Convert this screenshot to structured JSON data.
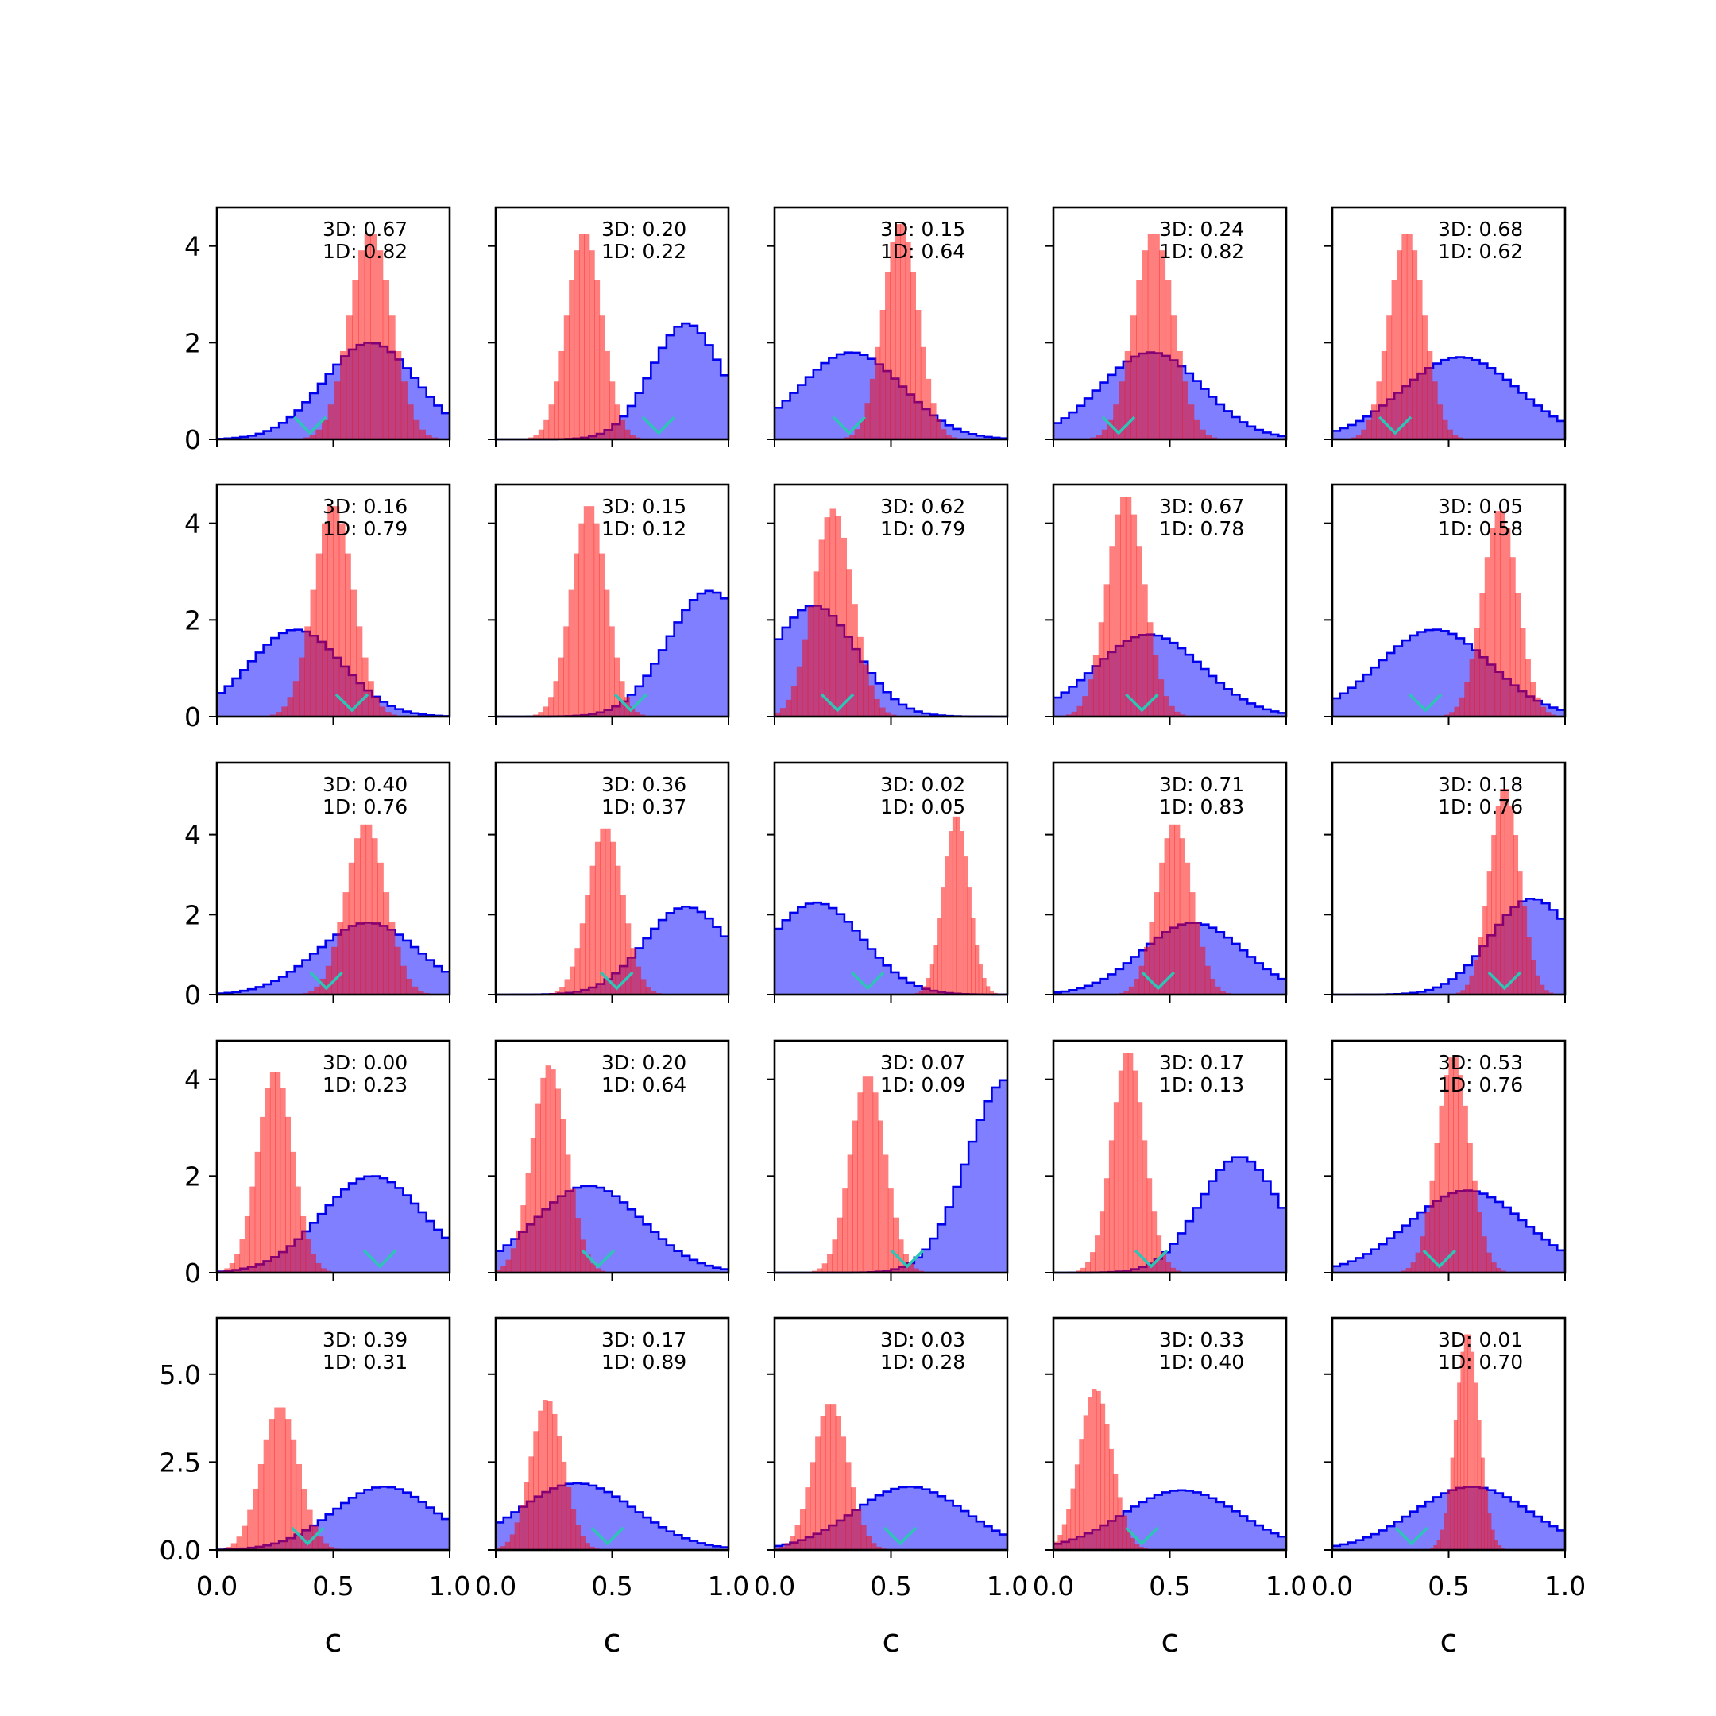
{
  "figure": {
    "shared_xlabel": "c"
  },
  "chart_data": {
    "type": "histogram-grid",
    "rows": 5,
    "cols": 5,
    "xlim": [
      0,
      1
    ],
    "x_ticks": [
      0.0,
      0.5,
      1.0
    ],
    "x_tick_labels": [
      "0.0",
      "0.5",
      "1.0"
    ],
    "xlabel": "c",
    "row_axes": [
      {
        "ylim": [
          0,
          4.8
        ],
        "y_ticks": [
          0,
          2,
          4
        ],
        "y_tick_labels": [
          "0",
          "2",
          "4"
        ]
      },
      {
        "ylim": [
          0,
          4.8
        ],
        "y_ticks": [
          0,
          2,
          4
        ],
        "y_tick_labels": [
          "0",
          "2",
          "4"
        ]
      },
      {
        "ylim": [
          0,
          5.8
        ],
        "y_ticks": [
          0,
          2,
          4
        ],
        "y_tick_labels": [
          "0",
          "2",
          "4"
        ]
      },
      {
        "ylim": [
          0,
          4.8
        ],
        "y_ticks": [
          0,
          2,
          4
        ],
        "y_tick_labels": [
          "0",
          "2",
          "4"
        ]
      },
      {
        "ylim": [
          0,
          6.6
        ],
        "y_ticks": [
          0,
          2.5,
          5.0
        ],
        "y_tick_labels": [
          "0.0",
          "2.5",
          "5.0"
        ]
      }
    ],
    "series_style": {
      "blue": {
        "fill": "#0000ff",
        "fill_opacity": 0.5,
        "edge": "#0000ee",
        "histtype": "step-filled"
      },
      "red": {
        "fill": "#ff0000",
        "fill_opacity": 0.5,
        "histtype": "bar"
      },
      "marker": {
        "color": "#2ec4b6",
        "shape": "v"
      }
    },
    "panels": [
      {
        "row": 0,
        "col": 0,
        "label_3d": "3D: 0.67",
        "label_1d": "1D: 0.82",
        "blue": {
          "mu": 0.66,
          "sigma": 0.2,
          "peak": 2.0
        },
        "red": {
          "mu": 0.66,
          "sigma": 0.09,
          "peak": 4.3
        },
        "marker_x": 0.4
      },
      {
        "row": 0,
        "col": 1,
        "label_3d": "3D: 0.20",
        "label_1d": "1D: 0.22",
        "blue": {
          "mu": 0.82,
          "sigma": 0.15,
          "peak": 2.4
        },
        "red": {
          "mu": 0.38,
          "sigma": 0.075,
          "peak": 4.3
        },
        "marker_x": 0.7
      },
      {
        "row": 0,
        "col": 2,
        "label_3d": "3D: 0.15",
        "label_1d": "1D: 0.64",
        "blue": {
          "mu": 0.33,
          "sigma": 0.22,
          "peak": 1.8
        },
        "red": {
          "mu": 0.54,
          "sigma": 0.075,
          "peak": 4.5
        },
        "marker_x": 0.32
      },
      {
        "row": 0,
        "col": 3,
        "label_3d": "3D: 0.24",
        "label_1d": "1D: 0.82",
        "blue": {
          "mu": 0.42,
          "sigma": 0.22,
          "peak": 1.8
        },
        "red": {
          "mu": 0.43,
          "sigma": 0.085,
          "peak": 4.3
        },
        "marker_x": 0.28
      },
      {
        "row": 0,
        "col": 4,
        "label_3d": "3D: 0.68",
        "label_1d": "1D: 0.62",
        "blue": {
          "mu": 0.55,
          "sigma": 0.25,
          "peak": 1.7
        },
        "red": {
          "mu": 0.32,
          "sigma": 0.075,
          "peak": 4.3
        },
        "marker_x": 0.27
      },
      {
        "row": 1,
        "col": 0,
        "label_3d": "3D: 0.16",
        "label_1d": "1D: 0.79",
        "blue": {
          "mu": 0.34,
          "sigma": 0.2,
          "peak": 1.8
        },
        "red": {
          "mu": 0.5,
          "sigma": 0.085,
          "peak": 4.4
        },
        "marker_x": 0.58
      },
      {
        "row": 1,
        "col": 1,
        "label_3d": "3D: 0.15",
        "label_1d": "1D: 0.12",
        "blue": {
          "mu": 0.92,
          "sigma": 0.18,
          "peak": 2.6
        },
        "red": {
          "mu": 0.4,
          "sigma": 0.075,
          "peak": 4.4
        },
        "marker_x": 0.58
      },
      {
        "row": 1,
        "col": 2,
        "label_3d": "3D: 0.62",
        "label_1d": "1D: 0.79",
        "blue": {
          "mu": 0.17,
          "sigma": 0.18,
          "peak": 2.3
        },
        "red": {
          "mu": 0.25,
          "sigma": 0.085,
          "peak": 4.3
        },
        "marker_x": 0.27
      },
      {
        "row": 1,
        "col": 3,
        "label_3d": "3D: 0.67",
        "label_1d": "1D: 0.78",
        "blue": {
          "mu": 0.41,
          "sigma": 0.23,
          "peak": 1.7
        },
        "red": {
          "mu": 0.31,
          "sigma": 0.08,
          "peak": 4.6
        },
        "marker_x": 0.38
      },
      {
        "row": 1,
        "col": 4,
        "label_3d": "3D: 0.05",
        "label_1d": "1D: 0.58",
        "blue": {
          "mu": 0.44,
          "sigma": 0.24,
          "peak": 1.8
        },
        "red": {
          "mu": 0.72,
          "sigma": 0.075,
          "peak": 4.3
        },
        "marker_x": 0.4
      },
      {
        "row": 2,
        "col": 0,
        "label_3d": "3D: 0.40",
        "label_1d": "1D: 0.76",
        "blue": {
          "mu": 0.65,
          "sigma": 0.22,
          "peak": 1.8
        },
        "red": {
          "mu": 0.64,
          "sigma": 0.085,
          "peak": 4.3
        },
        "marker_x": 0.47
      },
      {
        "row": 2,
        "col": 1,
        "label_3d": "3D: 0.36",
        "label_1d": "1D: 0.37",
        "blue": {
          "mu": 0.82,
          "sigma": 0.18,
          "peak": 2.2
        },
        "red": {
          "mu": 0.47,
          "sigma": 0.075,
          "peak": 4.2
        },
        "marker_x": 0.52
      },
      {
        "row": 2,
        "col": 2,
        "label_3d": "3D: 0.02",
        "label_1d": "1D: 0.05",
        "blue": {
          "mu": 0.18,
          "sigma": 0.2,
          "peak": 2.3
        },
        "red": {
          "mu": 0.78,
          "sigma": 0.055,
          "peak": 4.5
        },
        "marker_x": 0.4
      },
      {
        "row": 2,
        "col": 3,
        "label_3d": "3D: 0.71",
        "label_1d": "1D: 0.83",
        "blue": {
          "mu": 0.6,
          "sigma": 0.22,
          "peak": 1.8
        },
        "red": {
          "mu": 0.52,
          "sigma": 0.075,
          "peak": 4.3
        },
        "marker_x": 0.45
      },
      {
        "row": 2,
        "col": 4,
        "label_3d": "3D: 0.18",
        "label_1d": "1D: 0.76",
        "blue": {
          "mu": 0.86,
          "sigma": 0.18,
          "peak": 2.4
        },
        "red": {
          "mu": 0.74,
          "sigma": 0.065,
          "peak": 5.2
        },
        "marker_x": 0.74
      },
      {
        "row": 3,
        "col": 0,
        "label_3d": "3D: 0.00",
        "label_1d": "1D: 0.23",
        "blue": {
          "mu": 0.67,
          "sigma": 0.22,
          "peak": 2.0
        },
        "red": {
          "mu": 0.25,
          "sigma": 0.075,
          "peak": 4.2
        },
        "marker_x": 0.7
      },
      {
        "row": 3,
        "col": 1,
        "label_3d": "3D: 0.20",
        "label_1d": "1D: 0.64",
        "blue": {
          "mu": 0.4,
          "sigma": 0.23,
          "peak": 1.8
        },
        "red": {
          "mu": 0.23,
          "sigma": 0.075,
          "peak": 4.3
        },
        "marker_x": 0.44
      },
      {
        "row": 3,
        "col": 2,
        "label_3d": "3D: 0.07",
        "label_1d": "1D: 0.09",
        "blue": {
          "mu": 1.0,
          "sigma": 0.17,
          "peak": 4.0
        },
        "red": {
          "mu": 0.4,
          "sigma": 0.075,
          "peak": 4.1
        },
        "marker_x": 0.57
      },
      {
        "row": 3,
        "col": 3,
        "label_3d": "3D: 0.17",
        "label_1d": "1D: 0.13",
        "blue": {
          "mu": 0.8,
          "sigma": 0.17,
          "peak": 2.4
        },
        "red": {
          "mu": 0.32,
          "sigma": 0.07,
          "peak": 4.6
        },
        "marker_x": 0.42
      },
      {
        "row": 3,
        "col": 4,
        "label_3d": "3D: 0.53",
        "label_1d": "1D: 0.76",
        "blue": {
          "mu": 0.58,
          "sigma": 0.25,
          "peak": 1.7
        },
        "red": {
          "mu": 0.52,
          "sigma": 0.07,
          "peak": 4.5
        },
        "marker_x": 0.46
      },
      {
        "row": 4,
        "col": 0,
        "label_3d": "3D: 0.39",
        "label_1d": "1D: 0.31",
        "blue": {
          "mu": 0.72,
          "sigma": 0.22,
          "peak": 1.8
        },
        "red": {
          "mu": 0.27,
          "sigma": 0.08,
          "peak": 4.1
        },
        "marker_x": 0.39
      },
      {
        "row": 4,
        "col": 1,
        "label_3d": "3D: 0.17",
        "label_1d": "1D: 0.89",
        "blue": {
          "mu": 0.35,
          "sigma": 0.25,
          "peak": 1.9
        },
        "red": {
          "mu": 0.22,
          "sigma": 0.07,
          "peak": 4.3
        },
        "marker_x": 0.48
      },
      {
        "row": 4,
        "col": 2,
        "label_3d": "3D: 0.03",
        "label_1d": "1D: 0.28",
        "blue": {
          "mu": 0.58,
          "sigma": 0.24,
          "peak": 1.8
        },
        "red": {
          "mu": 0.24,
          "sigma": 0.075,
          "peak": 4.2
        },
        "marker_x": 0.54
      },
      {
        "row": 4,
        "col": 3,
        "label_3d": "3D: 0.33",
        "label_1d": "1D: 0.40",
        "blue": {
          "mu": 0.55,
          "sigma": 0.25,
          "peak": 1.7
        },
        "red": {
          "mu": 0.18,
          "sigma": 0.07,
          "peak": 4.6
        },
        "marker_x": 0.38
      },
      {
        "row": 4,
        "col": 4,
        "label_3d": "3D: 0.01",
        "label_1d": "1D: 0.70",
        "blue": {
          "mu": 0.6,
          "sigma": 0.25,
          "peak": 1.8
        },
        "red": {
          "mu": 0.58,
          "sigma": 0.05,
          "peak": 6.2
        },
        "marker_x": 0.34
      }
    ]
  }
}
